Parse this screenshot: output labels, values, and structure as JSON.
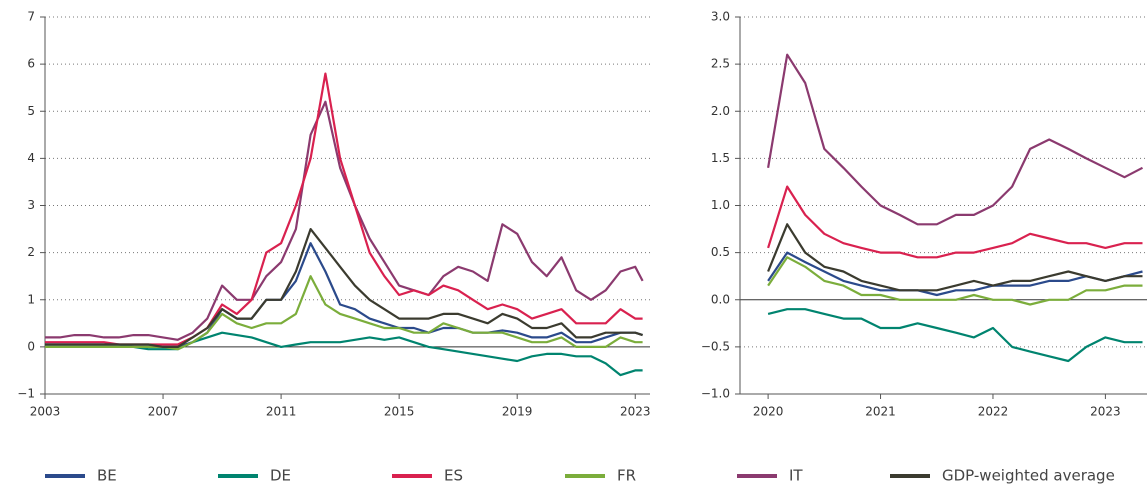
{
  "chart_data": [
    {
      "type": "line",
      "x": [
        2003,
        2003.5,
        2004,
        2004.5,
        2005,
        2005.5,
        2006,
        2006.5,
        2007,
        2007.5,
        2008,
        2008.5,
        2009,
        2009.5,
        2010,
        2010.5,
        2011,
        2011.5,
        2012,
        2012.5,
        2013,
        2013.5,
        2014,
        2014.5,
        2015,
        2015.5,
        2016,
        2016.5,
        2017,
        2017.5,
        2018,
        2018.5,
        2019,
        2019.5,
        2020,
        2020.5,
        2021,
        2021.5,
        2022,
        2022.5,
        2023,
        2023.25
      ],
      "xlim": [
        2003,
        2023.5
      ],
      "xticks": [
        2003,
        2007,
        2011,
        2015,
        2019,
        2023
      ],
      "ylim": [
        -1,
        7
      ],
      "yticks": [
        {
          "value": -1,
          "label": "−1"
        },
        0,
        1,
        2,
        3,
        4,
        5,
        6,
        7
      ],
      "grid": true,
      "series": [
        {
          "name": "IT",
          "color": "#8b3a6f",
          "values": [
            0.2,
            0.2,
            0.25,
            0.25,
            0.2,
            0.2,
            0.25,
            0.25,
            0.2,
            0.15,
            0.3,
            0.6,
            1.3,
            1.0,
            1.0,
            1.5,
            1.8,
            2.5,
            4.5,
            5.2,
            3.8,
            3.0,
            2.3,
            1.8,
            1.3,
            1.2,
            1.1,
            1.5,
            1.7,
            1.6,
            1.4,
            2.6,
            2.4,
            1.8,
            1.5,
            1.9,
            1.2,
            1.0,
            1.2,
            1.6,
            1.7,
            1.4
          ]
        },
        {
          "name": "ES",
          "color": "#d9214f",
          "values": [
            0.1,
            0.1,
            0.1,
            0.1,
            0.1,
            0.05,
            0.05,
            0.05,
            0.05,
            0.05,
            0.2,
            0.4,
            0.9,
            0.7,
            1.0,
            2.0,
            2.2,
            3.0,
            4.0,
            5.8,
            4.0,
            3.0,
            2.0,
            1.5,
            1.1,
            1.2,
            1.1,
            1.3,
            1.2,
            1.0,
            0.8,
            0.9,
            0.8,
            0.6,
            0.7,
            0.8,
            0.5,
            0.5,
            0.5,
            0.8,
            0.6,
            0.6
          ]
        },
        {
          "name": "BE",
          "color": "#2b4a8b",
          "values": [
            0.05,
            0.05,
            0.05,
            0.05,
            0.05,
            0.05,
            0.0,
            0.0,
            0.0,
            0.0,
            0.1,
            0.3,
            0.8,
            0.6,
            0.6,
            1.0,
            1.0,
            1.4,
            2.2,
            1.6,
            0.9,
            0.8,
            0.6,
            0.5,
            0.4,
            0.4,
            0.3,
            0.4,
            0.4,
            0.3,
            0.3,
            0.35,
            0.3,
            0.2,
            0.2,
            0.3,
            0.1,
            0.1,
            0.2,
            0.3,
            0.3,
            0.25
          ]
        },
        {
          "name": "DE",
          "color": "#00846f",
          "values": [
            0.0,
            0.0,
            0.0,
            0.0,
            0.0,
            0.0,
            0.0,
            -0.05,
            -0.05,
            -0.05,
            0.1,
            0.2,
            0.3,
            0.25,
            0.2,
            0.1,
            0.0,
            0.05,
            0.1,
            0.1,
            0.1,
            0.15,
            0.2,
            0.15,
            0.2,
            0.1,
            0.0,
            -0.05,
            -0.1,
            -0.15,
            -0.2,
            -0.25,
            -0.3,
            -0.2,
            -0.15,
            -0.15,
            -0.2,
            -0.2,
            -0.35,
            -0.6,
            -0.5,
            -0.5
          ]
        },
        {
          "name": "FR",
          "color": "#7bad3b",
          "values": [
            0.0,
            0.0,
            0.0,
            0.0,
            0.0,
            0.0,
            0.0,
            0.0,
            0.0,
            -0.05,
            0.1,
            0.3,
            0.7,
            0.5,
            0.4,
            0.5,
            0.5,
            0.7,
            1.5,
            0.9,
            0.7,
            0.6,
            0.5,
            0.4,
            0.4,
            0.3,
            0.3,
            0.5,
            0.4,
            0.3,
            0.3,
            0.3,
            0.2,
            0.1,
            0.1,
            0.2,
            0.0,
            0.0,
            0.0,
            0.2,
            0.1,
            0.1
          ]
        },
        {
          "name": "GDP-weighted average",
          "color": "#3b3b2f",
          "values": [
            0.05,
            0.05,
            0.05,
            0.05,
            0.05,
            0.05,
            0.05,
            0.05,
            0.0,
            0.0,
            0.2,
            0.4,
            0.8,
            0.6,
            0.6,
            1.0,
            1.0,
            1.6,
            2.5,
            2.1,
            1.7,
            1.3,
            1.0,
            0.8,
            0.6,
            0.6,
            0.6,
            0.7,
            0.7,
            0.6,
            0.5,
            0.7,
            0.6,
            0.4,
            0.4,
            0.5,
            0.2,
            0.2,
            0.3,
            0.3,
            0.3,
            0.25
          ]
        }
      ]
    },
    {
      "type": "line",
      "x": [
        2020,
        2020.17,
        2020.33,
        2020.5,
        2020.67,
        2020.83,
        2021,
        2021.17,
        2021.33,
        2021.5,
        2021.67,
        2021.83,
        2022,
        2022.17,
        2022.33,
        2022.5,
        2022.67,
        2022.83,
        2023,
        2023.17,
        2023.33
      ],
      "xlim": [
        2019.75,
        2023.37
      ],
      "xticks": [
        2020,
        2021,
        2022,
        2023
      ],
      "ylim": [
        -1,
        3
      ],
      "yticks": [
        {
          "value": -1,
          "label": "−1.0"
        },
        {
          "value": -0.5,
          "label": "−0.5"
        },
        {
          "value": 0,
          "label": "0.0"
        },
        0.5,
        {
          "value": 1,
          "label": "1.0"
        },
        1.5,
        {
          "value": 2,
          "label": "2.0"
        },
        2.5,
        {
          "value": 3,
          "label": "3.0"
        }
      ],
      "grid": true,
      "series": [
        {
          "color": "#8b3a6f",
          "values": [
            1.4,
            2.6,
            2.3,
            1.6,
            1.4,
            1.2,
            1.0,
            0.9,
            0.8,
            0.8,
            0.9,
            0.9,
            1.0,
            1.2,
            1.6,
            1.7,
            1.6,
            1.5,
            1.4,
            1.3,
            1.4
          ]
        },
        {
          "color": "#d9214f",
          "values": [
            0.55,
            1.2,
            0.9,
            0.7,
            0.6,
            0.55,
            0.5,
            0.5,
            0.45,
            0.45,
            0.5,
            0.5,
            0.55,
            0.6,
            0.7,
            0.65,
            0.6,
            0.6,
            0.55,
            0.6,
            0.6
          ]
        },
        {
          "color": "#2b4a8b",
          "values": [
            0.2,
            0.5,
            0.4,
            0.3,
            0.2,
            0.15,
            0.1,
            0.1,
            0.1,
            0.05,
            0.1,
            0.1,
            0.15,
            0.15,
            0.15,
            0.2,
            0.2,
            0.25,
            0.2,
            0.25,
            0.3
          ]
        },
        {
          "color": "#00846f",
          "values": [
            -0.15,
            -0.1,
            -0.1,
            -0.15,
            -0.2,
            -0.2,
            -0.3,
            -0.3,
            -0.25,
            -0.3,
            -0.35,
            -0.4,
            -0.3,
            -0.5,
            -0.55,
            -0.6,
            -0.65,
            -0.5,
            -0.4,
            -0.45,
            -0.45
          ]
        },
        {
          "color": "#7bad3b",
          "values": [
            0.15,
            0.45,
            0.35,
            0.2,
            0.15,
            0.05,
            0.05,
            0.0,
            0.0,
            0.0,
            0.0,
            0.05,
            0.0,
            0.0,
            -0.05,
            0.0,
            0.0,
            0.1,
            0.1,
            0.15,
            0.15
          ]
        },
        {
          "color": "#3b3b2f",
          "values": [
            0.3,
            0.8,
            0.5,
            0.35,
            0.3,
            0.2,
            0.15,
            0.1,
            0.1,
            0.1,
            0.15,
            0.2,
            0.15,
            0.2,
            0.2,
            0.25,
            0.3,
            0.25,
            0.2,
            0.25,
            0.25
          ]
        }
      ]
    }
  ]
}
